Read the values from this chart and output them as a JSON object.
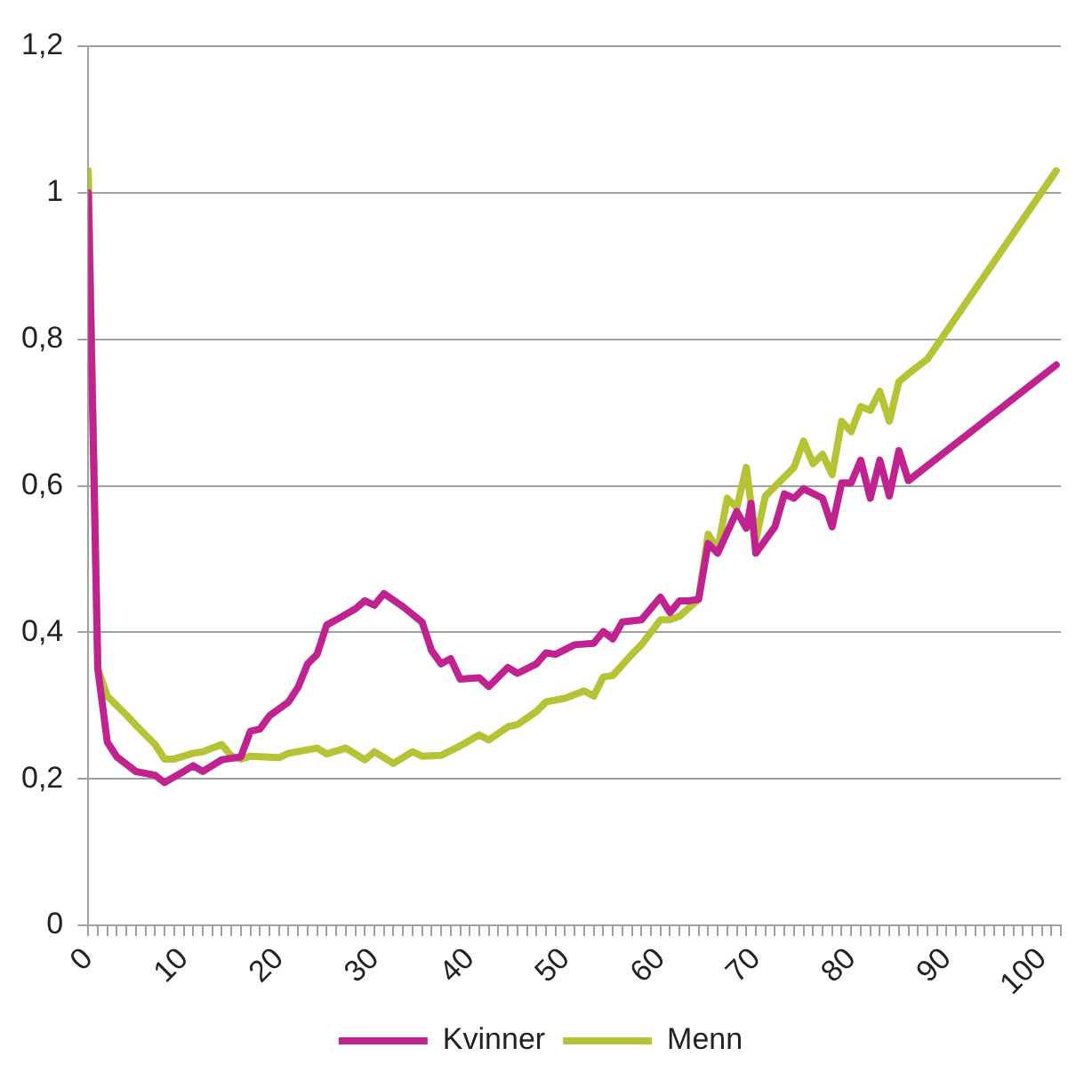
{
  "chart_data": {
    "type": "line",
    "legend": "bottom",
    "grid": "y",
    "marker": "none",
    "line_style": "solid",
    "xlim": [
      0,
      102
    ],
    "xticks": [
      0,
      {
        "value": 1,
        "label": null
      },
      {
        "value": 2,
        "label": null
      },
      {
        "value": 3,
        "label": null
      },
      {
        "value": 4,
        "label": null
      },
      {
        "value": 5,
        "label": null
      },
      {
        "value": 6,
        "label": null
      },
      {
        "value": 7,
        "label": null
      },
      {
        "value": 8,
        "label": null
      },
      {
        "value": 9,
        "label": null
      },
      10,
      {
        "value": 11,
        "label": null
      },
      {
        "value": 12,
        "label": null
      },
      {
        "value": 13,
        "label": null
      },
      {
        "value": 14,
        "label": null
      },
      {
        "value": 15,
        "label": null
      },
      {
        "value": 16,
        "label": null
      },
      {
        "value": 17,
        "label": null
      },
      {
        "value": 18,
        "label": null
      },
      {
        "value": 19,
        "label": null
      },
      20,
      {
        "value": 21,
        "label": null
      },
      {
        "value": 22,
        "label": null
      },
      {
        "value": 23,
        "label": null
      },
      {
        "value": 24,
        "label": null
      },
      {
        "value": 25,
        "label": null
      },
      {
        "value": 26,
        "label": null
      },
      {
        "value": 27,
        "label": null
      },
      {
        "value": 28,
        "label": null
      },
      {
        "value": 29,
        "label": null
      },
      30,
      {
        "value": 31,
        "label": null
      },
      {
        "value": 32,
        "label": null
      },
      {
        "value": 33,
        "label": null
      },
      {
        "value": 34,
        "label": null
      },
      {
        "value": 35,
        "label": null
      },
      {
        "value": 36,
        "label": null
      },
      {
        "value": 37,
        "label": null
      },
      {
        "value": 38,
        "label": null
      },
      {
        "value": 39,
        "label": null
      },
      40,
      {
        "value": 41,
        "label": null
      },
      {
        "value": 42,
        "label": null
      },
      {
        "value": 43,
        "label": null
      },
      {
        "value": 44,
        "label": null
      },
      {
        "value": 45,
        "label": null
      },
      {
        "value": 46,
        "label": null
      },
      {
        "value": 47,
        "label": null
      },
      {
        "value": 48,
        "label": null
      },
      {
        "value": 49,
        "label": null
      },
      50,
      {
        "value": 51,
        "label": null
      },
      {
        "value": 52,
        "label": null
      },
      {
        "value": 53,
        "label": null
      },
      {
        "value": 54,
        "label": null
      },
      {
        "value": 55,
        "label": null
      },
      {
        "value": 56,
        "label": null
      },
      {
        "value": 57,
        "label": null
      },
      {
        "value": 58,
        "label": null
      },
      {
        "value": 59,
        "label": null
      },
      60,
      {
        "value": 61,
        "label": null
      },
      {
        "value": 62,
        "label": null
      },
      {
        "value": 63,
        "label": null
      },
      {
        "value": 64,
        "label": null
      },
      {
        "value": 65,
        "label": null
      },
      {
        "value": 66,
        "label": null
      },
      {
        "value": 67,
        "label": null
      },
      {
        "value": 68,
        "label": null
      },
      {
        "value": 69,
        "label": null
      },
      70,
      {
        "value": 71,
        "label": null
      },
      {
        "value": 72,
        "label": null
      },
      {
        "value": 73,
        "label": null
      },
      {
        "value": 74,
        "label": null
      },
      {
        "value": 75,
        "label": null
      },
      {
        "value": 76,
        "label": null
      },
      {
        "value": 77,
        "label": null
      },
      {
        "value": 78,
        "label": null
      },
      {
        "value": 79,
        "label": null
      },
      80,
      {
        "value": 81,
        "label": null
      },
      {
        "value": 82,
        "label": null
      },
      {
        "value": 83,
        "label": null
      },
      {
        "value": 84,
        "label": null
      },
      {
        "value": 85,
        "label": null
      },
      {
        "value": 86,
        "label": null
      },
      {
        "value": 87,
        "label": null
      },
      {
        "value": 88,
        "label": null
      },
      {
        "value": 89,
        "label": null
      },
      90,
      {
        "value": 91,
        "label": null
      },
      {
        "value": 92,
        "label": null
      },
      {
        "value": 93,
        "label": null
      },
      {
        "value": 94,
        "label": null
      },
      {
        "value": 95,
        "label": null
      },
      {
        "value": 96,
        "label": null
      },
      {
        "value": 97,
        "label": null
      },
      {
        "value": 98,
        "label": null
      },
      {
        "value": 99,
        "label": null
      },
      100,
      {
        "value": 101,
        "label": null
      },
      {
        "value": 102,
        "label": null
      }
    ],
    "ylim": [
      0,
      1.2
    ],
    "yticks": [
      0,
      {
        "value": 0.2,
        "label": "0,2"
      },
      {
        "value": 0.4,
        "label": "0,4"
      },
      {
        "value": 0.6,
        "label": "0,6"
      },
      {
        "value": 0.8,
        "label": "0,8"
      },
      {
        "value": 1,
        "label": "1"
      },
      {
        "value": 1.2,
        "label": "1,2"
      }
    ],
    "series": [
      {
        "name": "Kvinner",
        "color": "#c0238f",
        "x": [
          0,
          1,
          2,
          3,
          5,
          7,
          8,
          10,
          11,
          12,
          14,
          16,
          17,
          18,
          19,
          21,
          22,
          23,
          24,
          25,
          26,
          28,
          29,
          30,
          31,
          33,
          35,
          36,
          37,
          38,
          39,
          41,
          42,
          44,
          45,
          47,
          48,
          49,
          51,
          53,
          54,
          55,
          56,
          58,
          60,
          61,
          62,
          63,
          64,
          65,
          66,
          68,
          69,
          69.5,
          70,
          72,
          73,
          74,
          75,
          77,
          78,
          79,
          80,
          81,
          82,
          83,
          84,
          85,
          86,
          101.5
        ],
        "values": [
          1.0,
          0.35,
          0.25,
          0.23,
          0.21,
          0.205,
          0.195,
          0.21,
          0.218,
          0.21,
          0.226,
          0.23,
          0.265,
          0.268,
          0.286,
          0.305,
          0.325,
          0.357,
          0.37,
          0.41,
          0.417,
          0.432,
          0.443,
          0.437,
          0.453,
          0.435,
          0.414,
          0.375,
          0.357,
          0.364,
          0.336,
          0.338,
          0.326,
          0.352,
          0.344,
          0.357,
          0.372,
          0.37,
          0.383,
          0.385,
          0.401,
          0.391,
          0.414,
          0.417,
          0.448,
          0.427,
          0.443,
          0.443,
          0.445,
          0.521,
          0.508,
          0.565,
          0.542,
          0.576,
          0.508,
          0.544,
          0.589,
          0.583,
          0.596,
          0.583,
          0.544,
          0.604,
          0.604,
          0.635,
          0.583,
          0.635,
          0.586,
          0.648,
          0.607,
          0.765
        ]
      },
      {
        "name": "Menn",
        "color": "#b5c334",
        "x": [
          0,
          1,
          2,
          4,
          5,
          7,
          8,
          9,
          11,
          12,
          14,
          15,
          16,
          17,
          20,
          21,
          24,
          25,
          27,
          29,
          30,
          32,
          34,
          35,
          37,
          39,
          41,
          42,
          44,
          45,
          47,
          48,
          50,
          52,
          53,
          54,
          55,
          57,
          58,
          60,
          61,
          62,
          64,
          65,
          66,
          67,
          68,
          69,
          70,
          71,
          74,
          75,
          76,
          77,
          78,
          79,
          80,
          81,
          82,
          83,
          84,
          85,
          86,
          88,
          101.5
        ],
        "values": [
          1.03,
          0.35,
          0.313,
          0.287,
          0.273,
          0.247,
          0.227,
          0.227,
          0.235,
          0.237,
          0.247,
          0.231,
          0.227,
          0.231,
          0.229,
          0.235,
          0.242,
          0.234,
          0.242,
          0.226,
          0.237,
          0.221,
          0.237,
          0.231,
          0.232,
          0.245,
          0.26,
          0.253,
          0.271,
          0.274,
          0.292,
          0.305,
          0.31,
          0.32,
          0.313,
          0.339,
          0.341,
          0.37,
          0.383,
          0.417,
          0.417,
          0.422,
          0.445,
          0.534,
          0.513,
          0.583,
          0.57,
          0.625,
          0.526,
          0.586,
          0.625,
          0.661,
          0.63,
          0.643,
          0.615,
          0.688,
          0.674,
          0.708,
          0.703,
          0.729,
          0.688,
          0.742,
          0.753,
          0.773,
          1.03
        ]
      }
    ]
  }
}
